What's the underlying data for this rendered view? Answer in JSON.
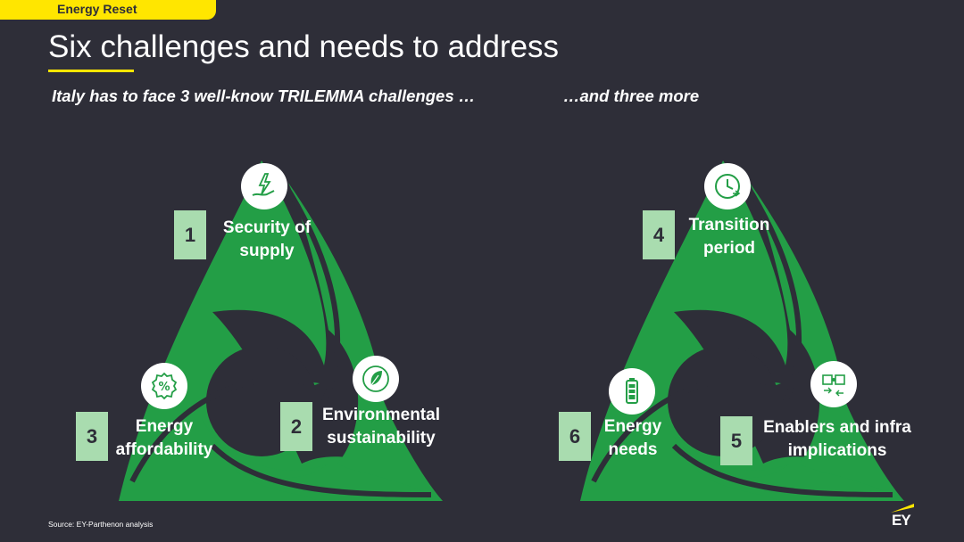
{
  "header": {
    "tag": "Energy Reset"
  },
  "title": "Six challenges and needs to address",
  "subtitles": {
    "left": "Italy has to face 3 well-know TRILEMMA challenges …",
    "right": "…and three more"
  },
  "colors": {
    "accent": "#ffe600",
    "green": "#239e46",
    "box": "#a9dcaf",
    "background": "#2e2e38"
  },
  "challenges": [
    {
      "number": "1",
      "label": "Security of\nsupply",
      "icon": "hand-energy-icon"
    },
    {
      "number": "2",
      "label": "Environmental\nsustainability",
      "icon": "leaf-icon"
    },
    {
      "number": "3",
      "label": "Energy\naffordability",
      "icon": "percent-badge-icon"
    },
    {
      "number": "4",
      "label": "Transition\nperiod",
      "icon": "clock-icon"
    },
    {
      "number": "5",
      "label": "Enablers and infra\nimplications",
      "icon": "puzzle-icon"
    },
    {
      "number": "6",
      "label": "Energy\nneeds",
      "icon": "battery-icon"
    }
  ],
  "source": "Source: EY-Parthenon analysis",
  "logo": "EY"
}
